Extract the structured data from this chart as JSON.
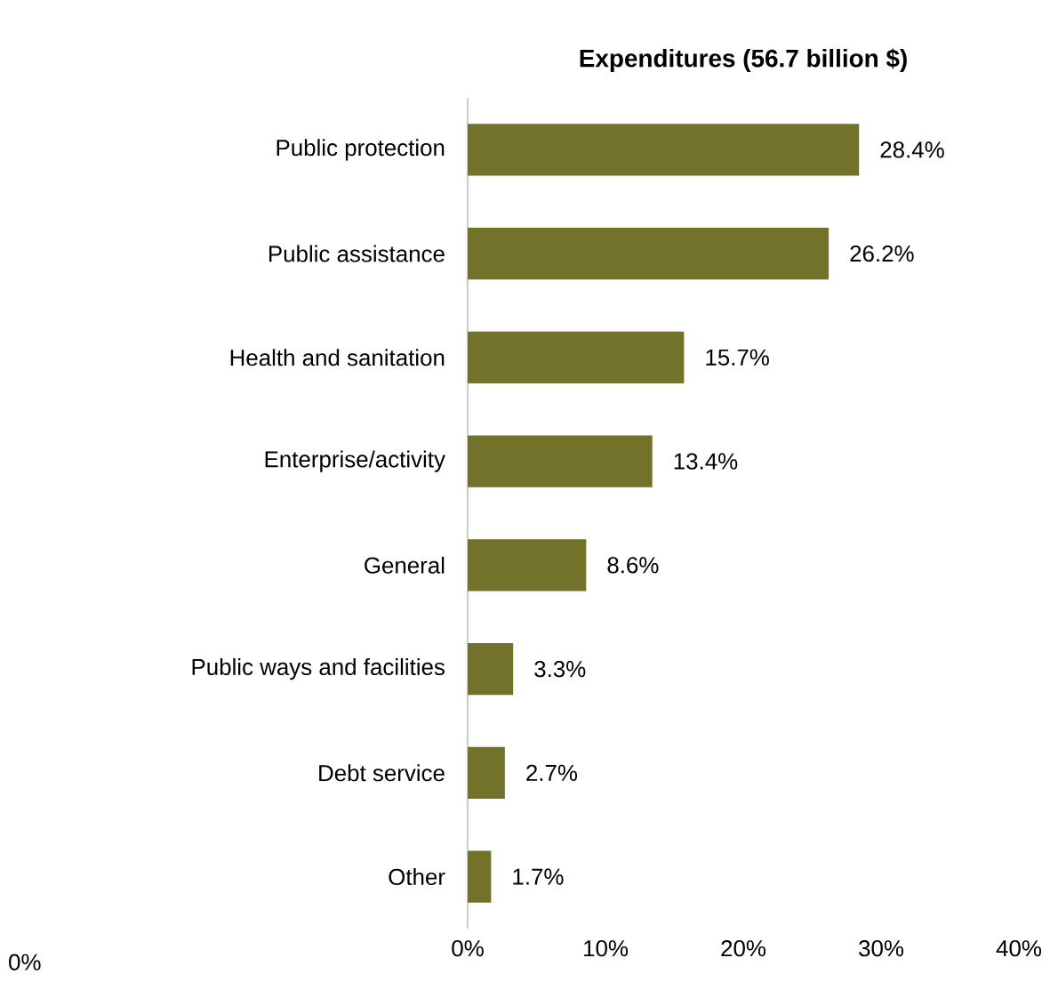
{
  "chart_data": {
    "type": "bar",
    "orientation": "horizontal",
    "title": "**Expenditures (56.7 billion $)**",
    "categories": [
      "Public protection",
      "Public assistance",
      "Health and sanitation",
      "Enterprise/activity",
      "General",
      "Public ways and facilities",
      "Debt service",
      "Other"
    ],
    "values": [
      28.4,
      26.2,
      15.7,
      13.4,
      8.6,
      3.3,
      2.7,
      1.7
    ],
    "value_labels": [
      "28.4%",
      "26.2%",
      "15.7%",
      "13.4%",
      "8.6%",
      "3.3%",
      "2.7%",
      "1.7%"
    ],
    "color": "#72722a",
    "xlim": [
      0,
      40
    ],
    "xticks": [
      {
        "value": 0,
        "label": "0%"
      },
      {
        "value": 10,
        "label": "10%"
      },
      {
        "value": 20,
        "label": "20%"
      },
      {
        "value": 30,
        "label": "30%"
      },
      {
        "value": 40,
        "label": "40%"
      }
    ],
    "annotations": [
      "0%"
    ]
  }
}
